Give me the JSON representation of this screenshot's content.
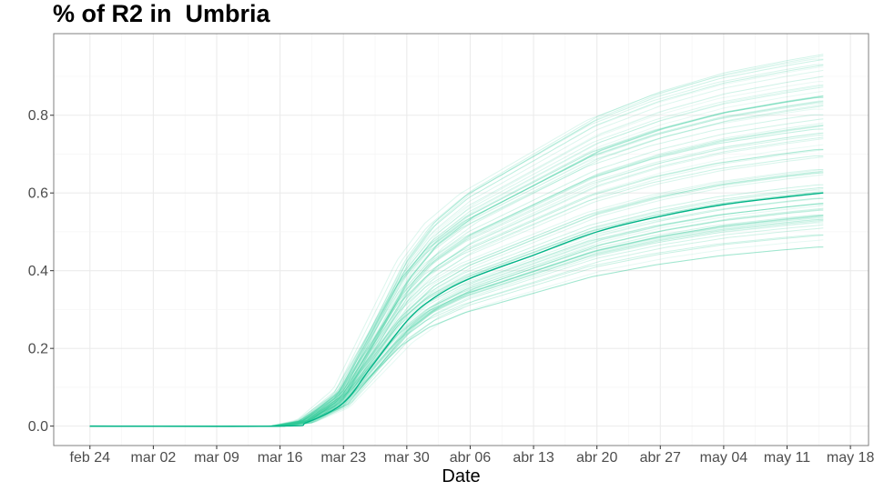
{
  "chart_data": {
    "type": "line",
    "title": "% of R2 in  Umbria",
    "xlabel": "Date",
    "ylabel": "",
    "x_ticks": [
      "feb 24",
      "mar 02",
      "mar 09",
      "mar 16",
      "mar 23",
      "mar 30",
      "abr 06",
      "abr 13",
      "abr 20",
      "abr 27",
      "may 04",
      "may 11",
      "may 18"
    ],
    "x_tick_days": [
      0,
      7,
      14,
      21,
      28,
      35,
      42,
      49,
      56,
      63,
      70,
      77,
      84
    ],
    "xlim_days": [
      -4,
      86
    ],
    "x_end_day": 81,
    "y_ticks": [
      "0.0",
      "0.2",
      "0.4",
      "0.6",
      "0.8"
    ],
    "ylim": [
      -0.05,
      1.01
    ],
    "grid": true,
    "legend": "none",
    "main_series": {
      "x_days": [
        0,
        21,
        24,
        28,
        31,
        35,
        38,
        42,
        49,
        56,
        63,
        70,
        77,
        81
      ],
      "values": [
        0.0,
        0.0,
        0.01,
        0.06,
        0.15,
        0.27,
        0.33,
        0.38,
        0.44,
        0.5,
        0.54,
        0.57,
        0.59,
        0.6
      ],
      "color": "#00b386"
    },
    "ensemble": {
      "count": 90,
      "final_min": 0.46,
      "final_max": 0.96,
      "color": "#33cc99"
    }
  }
}
